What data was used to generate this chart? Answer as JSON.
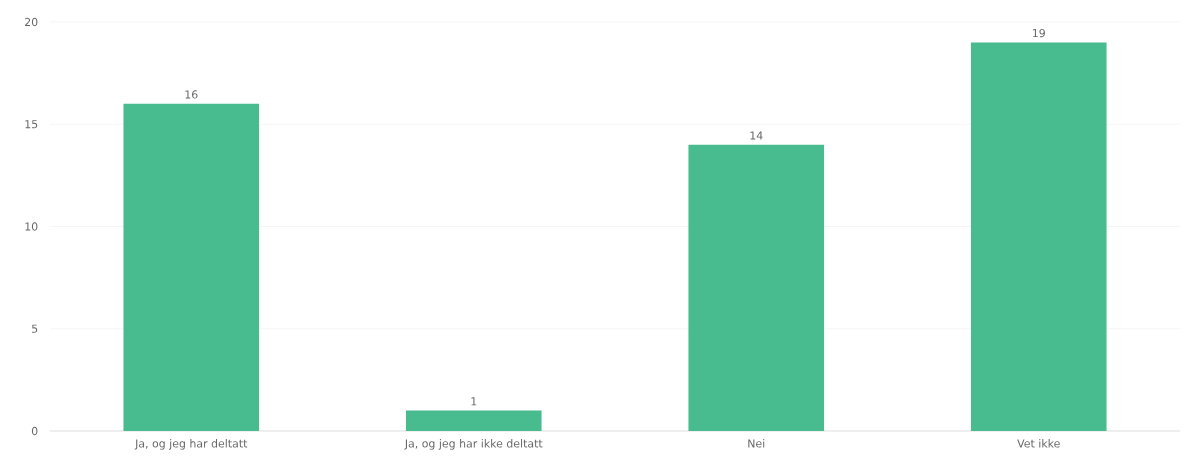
{
  "chart_data": {
    "type": "bar",
    "categories": [
      "Ja, og jeg har deltatt",
      "Ja, og jeg har ikke deltatt",
      "Nei",
      "Vet ikke"
    ],
    "values": [
      16,
      1,
      14,
      19
    ],
    "color": "#48bb8f",
    "ylim": [
      0,
      20
    ],
    "yticks": [
      0,
      5,
      10,
      15,
      20
    ],
    "grid": "y",
    "data_labels": true
  }
}
